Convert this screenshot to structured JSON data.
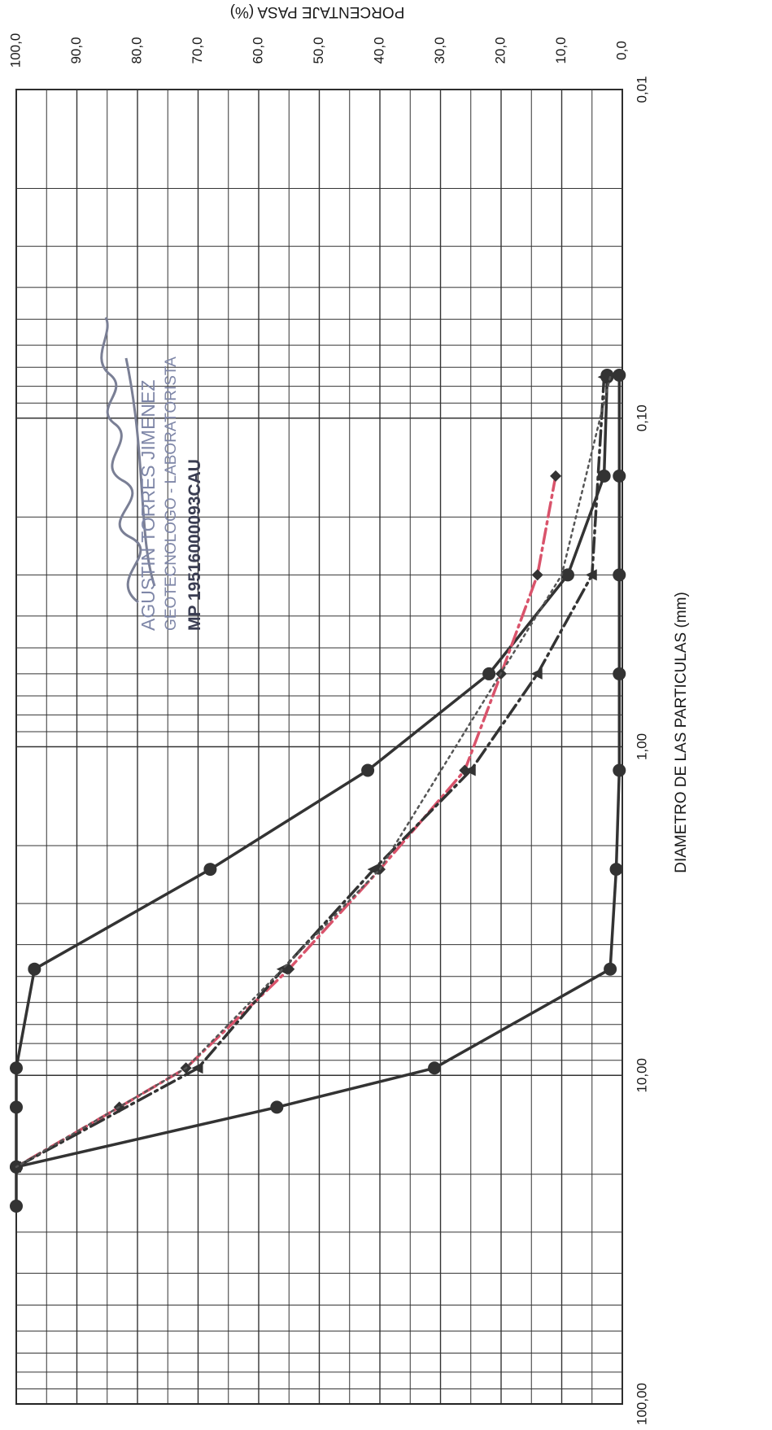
{
  "chart_data": {
    "type": "line",
    "x_scale": "log",
    "xlabel": "DIAMETRO DE LAS PARTICULAS (mm)",
    "ylabel": "PORCENTAJE PASA (%)",
    "xlim": [
      0.01,
      100
    ],
    "ylim": [
      0,
      100
    ],
    "x_ticks": [
      "0,01",
      "0,10",
      "1,00",
      "10,00",
      "100,00"
    ],
    "y_ticks": [
      "0,0",
      "10,0",
      "20,0",
      "30,0",
      "40,0",
      "50,0",
      "60,0",
      "70,0",
      "80,0",
      "90,0",
      "100,0"
    ],
    "grid": true,
    "series": [
      {
        "x": [
          0.074,
          0.075,
          0.15,
          0.3,
          0.6,
          1.18,
          2.36,
          4.75,
          9.5,
          12.5,
          19,
          25
        ],
        "y": [
          2.5,
          2.5,
          3,
          9,
          22,
          42,
          68,
          97,
          100,
          100,
          100,
          100
        ],
        "style": "solid",
        "marker": "circle",
        "color": "#333333"
      },
      {
        "x": [
          0.074,
          0.15,
          0.3,
          0.6,
          1.18,
          2.36,
          4.75,
          9.5,
          12.5,
          19
        ],
        "y": [
          0.5,
          0.5,
          0.5,
          0.5,
          0.5,
          1,
          2,
          31,
          57,
          100
        ],
        "style": "solid",
        "marker": "circle",
        "color": "#333333"
      },
      {
        "x": [
          0.15,
          0.3,
          0.6,
          1.18,
          2.36,
          4.75,
          9.5,
          12.5,
          19
        ],
        "y": [
          11,
          14,
          20,
          26,
          40,
          55,
          72,
          83,
          100
        ],
        "style": "dash-dot",
        "marker": "diamond",
        "color": "#d9536b"
      },
      {
        "x": [
          0.075,
          0.3,
          0.6,
          1.18,
          2.36,
          4.75,
          9.5,
          19
        ],
        "y": [
          3,
          5,
          14,
          25,
          41,
          56,
          70,
          100
        ],
        "style": "dash-dot",
        "marker": "triangle",
        "color": "#333333"
      },
      {
        "x": [
          0.075,
          0.3,
          2.36,
          9.5,
          19
        ],
        "y": [
          2,
          10,
          40,
          72,
          100
        ],
        "style": "dotted",
        "marker": "none",
        "color": "#555555"
      }
    ]
  },
  "stamp": {
    "name": "AGUSTIN TORRES JIMENEZ",
    "role": "GEOTECNOLOGO - LABORATORISTA",
    "reg": "MP 19516000093CAU"
  }
}
